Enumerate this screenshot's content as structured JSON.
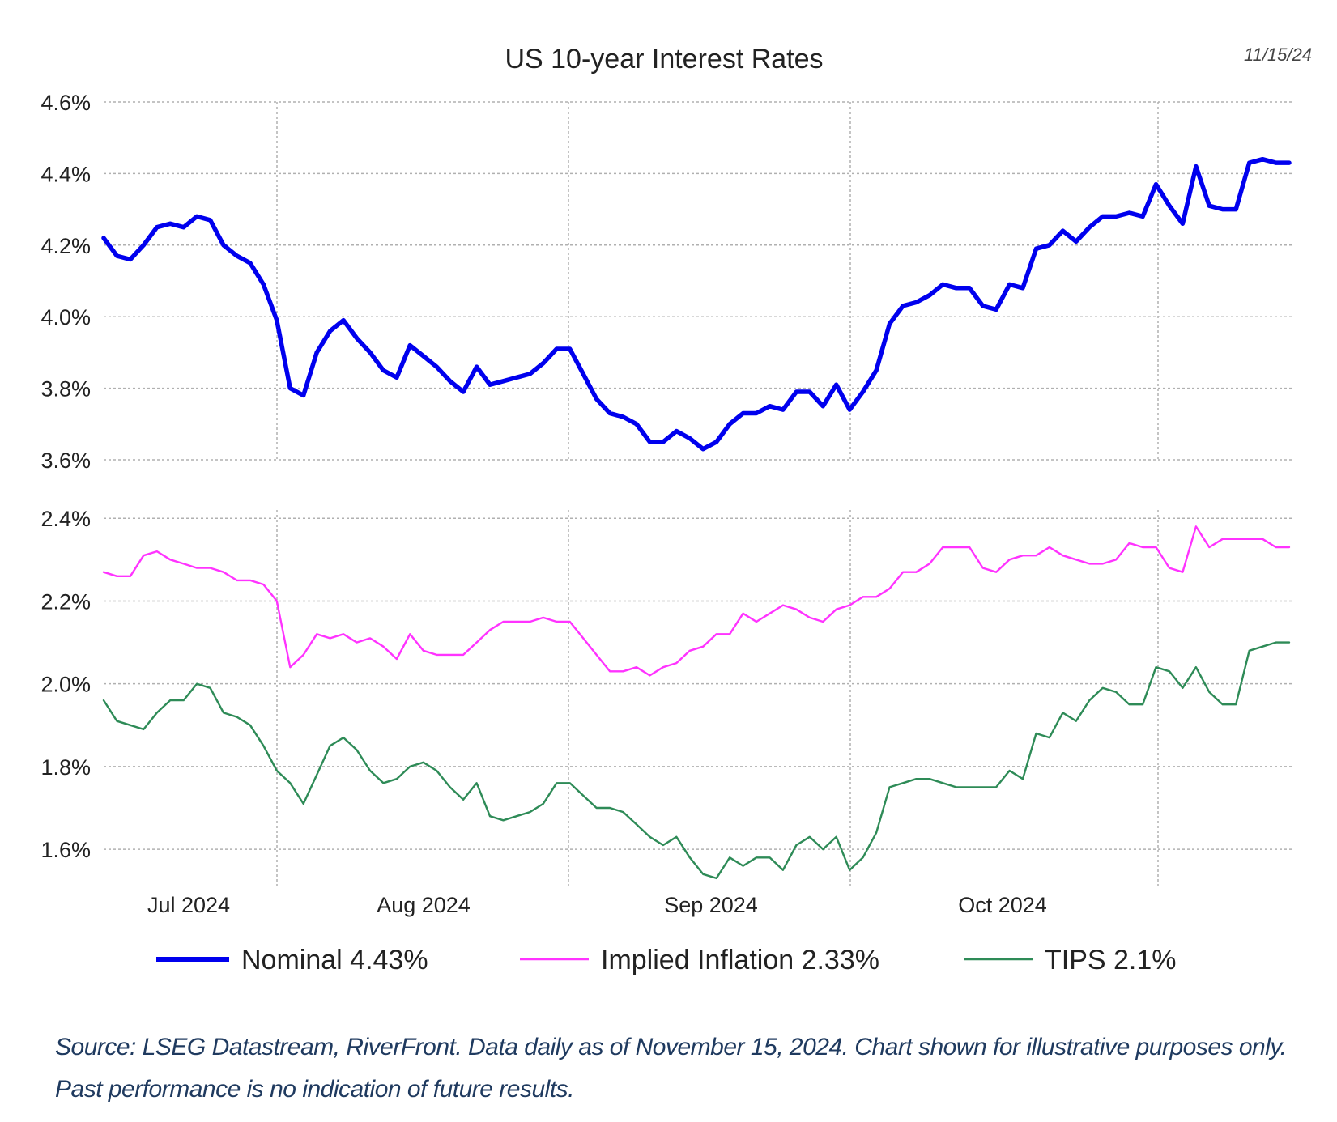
{
  "chart_data": {
    "type": "line",
    "title": "US 10-year Interest Rates",
    "date_label": "11/15/24",
    "x_tick_labels": [
      "Jul 2024",
      "Aug 2024",
      "Sep 2024",
      "Oct 2024"
    ],
    "panels": [
      {
        "name": "top",
        "ylim": [
          3.6,
          4.6
        ],
        "y_tick_labels": [
          "4.6%",
          "4.4%",
          "4.2%",
          "4.0%",
          "3.8%",
          "3.6%"
        ],
        "y_ticks": [
          4.6,
          4.4,
          4.2,
          4.0,
          3.8,
          3.6
        ],
        "series": [
          {
            "name": "Nominal",
            "legend": "Nominal 4.43%",
            "color": "#0000ee",
            "values": [
              4.22,
              4.17,
              4.16,
              4.2,
              4.25,
              4.26,
              4.25,
              4.28,
              4.27,
              4.2,
              4.17,
              4.15,
              4.09,
              3.99,
              3.8,
              3.78,
              3.9,
              3.96,
              3.99,
              3.94,
              3.9,
              3.85,
              3.83,
              3.92,
              3.89,
              3.86,
              3.82,
              3.79,
              3.86,
              3.81,
              3.82,
              3.83,
              3.84,
              3.87,
              3.91,
              3.91,
              3.84,
              3.77,
              3.73,
              3.72,
              3.7,
              3.65,
              3.65,
              3.68,
              3.66,
              3.63,
              3.65,
              3.7,
              3.73,
              3.73,
              3.75,
              3.74,
              3.79,
              3.79,
              3.75,
              3.81,
              3.74,
              3.79,
              3.85,
              3.98,
              4.03,
              4.04,
              4.06,
              4.09,
              4.08,
              4.08,
              4.03,
              4.02,
              4.09,
              4.08,
              4.19,
              4.2,
              4.24,
              4.21,
              4.25,
              4.28,
              4.28,
              4.29,
              4.28,
              4.37,
              4.31,
              4.26,
              4.42,
              4.31,
              4.3,
              4.3,
              4.43,
              4.44,
              4.43,
              4.43
            ]
          }
        ]
      },
      {
        "name": "bottom",
        "ylim": [
          1.52,
          2.42
        ],
        "y_tick_labels": [
          "2.4%",
          "2.2%",
          "2.0%",
          "1.8%",
          "1.6%"
        ],
        "y_ticks": [
          2.4,
          2.2,
          2.0,
          1.8,
          1.6
        ],
        "series": [
          {
            "name": "Implied Inflation",
            "legend": "Implied Inflation 2.33%",
            "color": "#ff33ff",
            "values": [
              2.27,
              2.26,
              2.26,
              2.31,
              2.32,
              2.3,
              2.29,
              2.28,
              2.28,
              2.27,
              2.25,
              2.25,
              2.24,
              2.2,
              2.04,
              2.07,
              2.12,
              2.11,
              2.12,
              2.1,
              2.11,
              2.09,
              2.06,
              2.12,
              2.08,
              2.07,
              2.07,
              2.07,
              2.1,
              2.13,
              2.15,
              2.15,
              2.15,
              2.16,
              2.15,
              2.15,
              2.11,
              2.07,
              2.03,
              2.03,
              2.04,
              2.02,
              2.04,
              2.05,
              2.08,
              2.09,
              2.12,
              2.12,
              2.17,
              2.15,
              2.17,
              2.19,
              2.18,
              2.16,
              2.15,
              2.18,
              2.19,
              2.21,
              2.21,
              2.23,
              2.27,
              2.27,
              2.29,
              2.33,
              2.33,
              2.33,
              2.28,
              2.27,
              2.3,
              2.31,
              2.31,
              2.33,
              2.31,
              2.3,
              2.29,
              2.29,
              2.3,
              2.34,
              2.33,
              2.33,
              2.28,
              2.27,
              2.38,
              2.33,
              2.35,
              2.35,
              2.35,
              2.35,
              2.33,
              2.33
            ]
          },
          {
            "name": "TIPS",
            "legend": "TIPS 2.1%",
            "color": "#2e8b57",
            "values": [
              1.96,
              1.91,
              1.9,
              1.89,
              1.93,
              1.96,
              1.96,
              2.0,
              1.99,
              1.93,
              1.92,
              1.9,
              1.85,
              1.79,
              1.76,
              1.71,
              1.78,
              1.85,
              1.87,
              1.84,
              1.79,
              1.76,
              1.77,
              1.8,
              1.81,
              1.79,
              1.75,
              1.72,
              1.76,
              1.68,
              1.67,
              1.68,
              1.69,
              1.71,
              1.76,
              1.76,
              1.73,
              1.7,
              1.7,
              1.69,
              1.66,
              1.63,
              1.61,
              1.63,
              1.58,
              1.54,
              1.53,
              1.58,
              1.56,
              1.58,
              1.58,
              1.55,
              1.61,
              1.63,
              1.6,
              1.63,
              1.55,
              1.58,
              1.64,
              1.75,
              1.76,
              1.77,
              1.77,
              1.76,
              1.75,
              1.75,
              1.75,
              1.75,
              1.79,
              1.77,
              1.88,
              1.87,
              1.93,
              1.91,
              1.96,
              1.99,
              1.98,
              1.95,
              1.95,
              2.04,
              2.03,
              1.99,
              2.04,
              1.98,
              1.95,
              1.95,
              2.08,
              2.09,
              2.1,
              2.1
            ]
          }
        ]
      }
    ],
    "grid": true,
    "legend_position": "bottom"
  },
  "footer": {
    "source_text": "Source: LSEG Datastream, RiverFront. Data daily as of November 15, 2024. Chart shown for illustrative purposes only. Past performance is no indication of future results."
  }
}
